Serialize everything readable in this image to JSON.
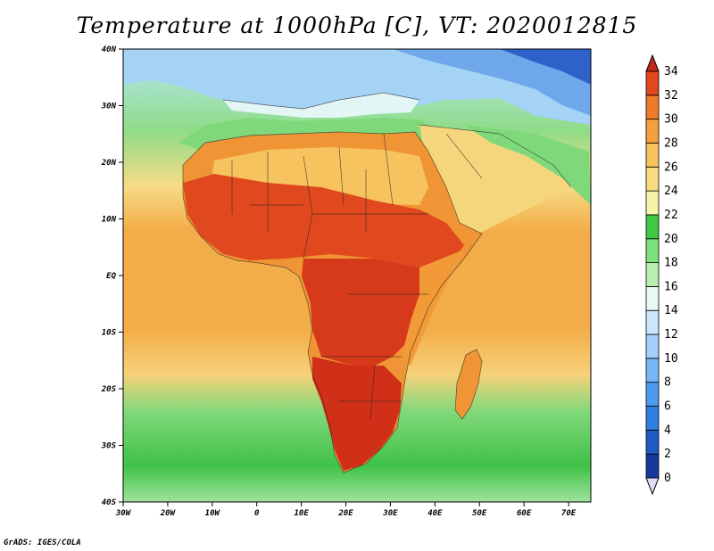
{
  "title": "Temperature at 1000hPa [C], VT: 2020012815",
  "credit": "GrADS: IGES/COLA",
  "lat_labels": [
    "40N",
    "30N",
    "20N",
    "10N",
    "EQ",
    "10S",
    "20S",
    "30S",
    "40S"
  ],
  "lon_labels": [
    "30W",
    "20W",
    "10W",
    "0",
    "10E",
    "20E",
    "30E",
    "40E",
    "50E",
    "60E",
    "70E"
  ],
  "colorbar": {
    "ticks": [
      "0",
      "2",
      "4",
      "6",
      "8",
      "10",
      "12",
      "14",
      "16",
      "18",
      "20",
      "22",
      "24",
      "26",
      "28",
      "30",
      "32",
      "34"
    ],
    "colors": [
      "#0b1e7c",
      "#153a9c",
      "#1f5cc2",
      "#2f7ee0",
      "#4d9bef",
      "#79b6f6",
      "#a5cff9",
      "#cbe6fb",
      "#e8f8f2",
      "#b6efb0",
      "#7ee07c",
      "#3fc843",
      "#f6f2a6",
      "#f9dc80",
      "#f7c25d",
      "#f3a03d",
      "#ee7a2a",
      "#e0481d",
      "#c2271a"
    ]
  },
  "map_colors": {
    "ocean_south_cool": "#4cbf4a",
    "ocean_temperate": "#86df7d",
    "ocean_warm": "#f6c25c",
    "ocean_tropical": "#f2a744",
    "ocean_subtropical": "#f8e08a",
    "land_hot": "#d83a1c",
    "land_very_hot": "#c22a18",
    "land_warm": "#f08a2c",
    "sahara": "#f7c35e",
    "med": "#cdeafa",
    "europe": "#8fc5f3",
    "europe_cold": "#4e8fe2",
    "arctic": "#1f56c0"
  }
}
